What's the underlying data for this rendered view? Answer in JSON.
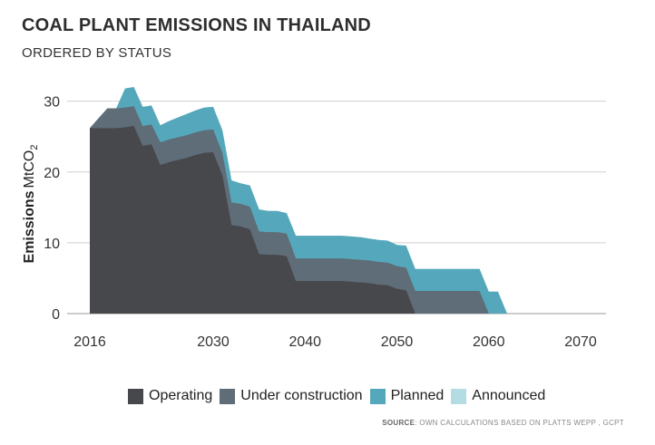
{
  "header": {
    "title": "COAL PLANT EMISSIONS IN THAILAND",
    "subtitle": "ORDERED BY STATUS"
  },
  "source": {
    "label": "SOURCE",
    "text": ": OWN CALCULATIONS BASED ON PLATTS WEPP , GCPT"
  },
  "chart_data": {
    "type": "area",
    "stacked": true,
    "title": "COAL PLANT EMISSIONS IN THAILAND",
    "subtitle": "ORDERED BY STATUS",
    "ylabel_bold": "Emissions",
    "ylabel_rest": "MtCO",
    "ylabel_sub": "2",
    "xlim": [
      2016,
      2070
    ],
    "ylim": [
      0,
      32
    ],
    "xticks": [
      2016,
      2030,
      2040,
      2050,
      2060,
      2070
    ],
    "yticks": [
      0,
      10,
      20,
      30
    ],
    "grid": "horizontal",
    "legend_position": "bottom",
    "x": [
      2016,
      2018,
      2019,
      2020,
      2021,
      2022,
      2023,
      2024,
      2025,
      2026,
      2027,
      2028,
      2029,
      2030,
      2031,
      2032,
      2033,
      2034,
      2035,
      2036,
      2037,
      2038,
      2039,
      2040,
      2041,
      2042,
      2043,
      2044,
      2045,
      2046,
      2047,
      2048,
      2049,
      2050,
      2051,
      2052,
      2053,
      2054,
      2055,
      2056,
      2057,
      2058,
      2059,
      2060,
      2061,
      2062,
      2063
    ],
    "series": [
      {
        "name": "Operating",
        "color": "#47484c",
        "values": [
          26.2,
          26.2,
          26.2,
          26.3,
          26.5,
          23.7,
          23.9,
          21.0,
          21.4,
          21.7,
          22.0,
          22.4,
          22.7,
          22.8,
          19.5,
          12.5,
          12.3,
          11.9,
          8.4,
          8.3,
          8.3,
          8.1,
          4.6,
          4.6,
          4.6,
          4.6,
          4.6,
          4.6,
          4.5,
          4.4,
          4.3,
          4.1,
          4.0,
          3.5,
          3.3,
          0,
          0,
          0,
          0,
          0,
          0,
          0,
          0,
          0,
          0,
          0,
          0
        ]
      },
      {
        "name": "Under construction",
        "color": "#5f6d78",
        "values": [
          0,
          2.8,
          2.8,
          2.8,
          2.8,
          2.8,
          2.8,
          3.2,
          3.2,
          3.2,
          3.2,
          3.2,
          3.2,
          3.2,
          3.2,
          3.2,
          3.2,
          3.2,
          3.2,
          3.2,
          3.2,
          3.2,
          3.2,
          3.2,
          3.2,
          3.2,
          3.2,
          3.2,
          3.2,
          3.2,
          3.2,
          3.2,
          3.2,
          3.2,
          3.2,
          3.2,
          3.2,
          3.2,
          3.2,
          3.2,
          3.2,
          3.2,
          3.2,
          0,
          0,
          0,
          0
        ]
      },
      {
        "name": "Planned",
        "color": "#55a8bb",
        "values": [
          0,
          0,
          0,
          2.7,
          2.7,
          2.7,
          2.7,
          2.4,
          2.6,
          2.8,
          3.0,
          3.1,
          3.2,
          3.2,
          3.2,
          3.1,
          2.9,
          3.0,
          3.1,
          3.0,
          3.0,
          2.9,
          3.2,
          3.2,
          3.2,
          3.2,
          3.2,
          3.2,
          3.2,
          3.2,
          3.1,
          3.1,
          3.1,
          3.0,
          3.1,
          3.1,
          3.1,
          3.1,
          3.1,
          3.1,
          3.1,
          3.1,
          3.1,
          3.1,
          3.1,
          0,
          0
        ]
      },
      {
        "name": "Announced",
        "color": "#b3dde3",
        "values": [
          0,
          0,
          0,
          0,
          0,
          0,
          0,
          0,
          0,
          0,
          0,
          0,
          0,
          0,
          0,
          0,
          0,
          0,
          0,
          0,
          0,
          0,
          0,
          0,
          0,
          0,
          0,
          0,
          0,
          0,
          0,
          0,
          0,
          0,
          0,
          0,
          0,
          0,
          0,
          0,
          0,
          0,
          0,
          0,
          0,
          0,
          0
        ]
      }
    ]
  }
}
